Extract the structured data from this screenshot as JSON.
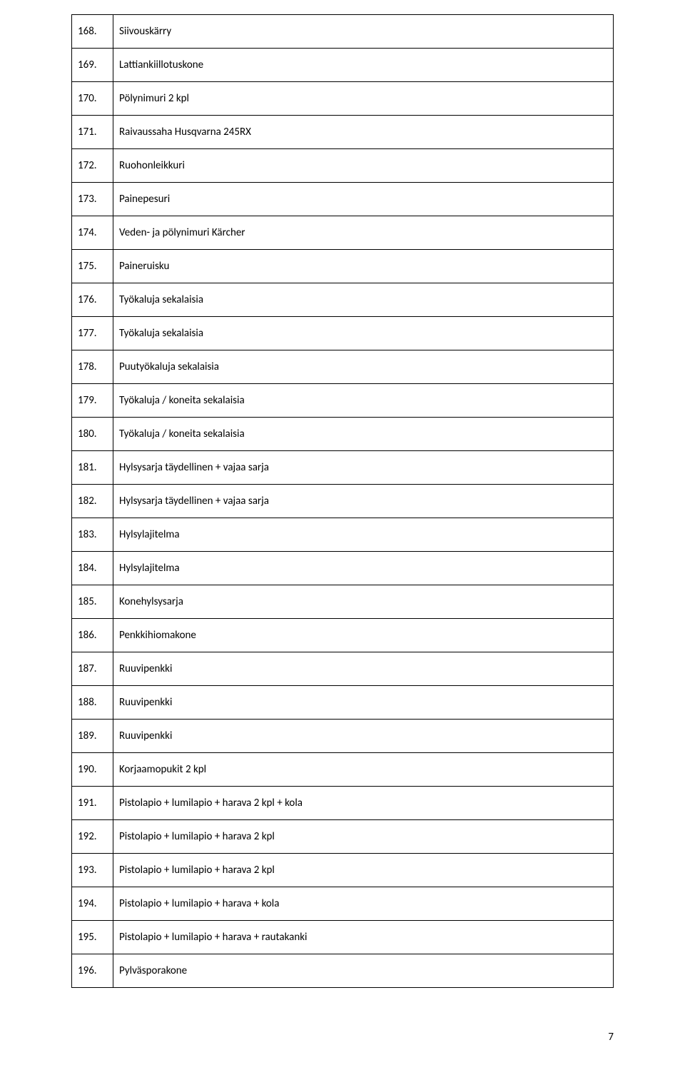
{
  "page_number": "7",
  "rows": [
    {
      "num": "168.",
      "desc": "Siivouskärry"
    },
    {
      "num": "169.",
      "desc": "Lattiankiillotuskone"
    },
    {
      "num": "170.",
      "desc": "Pölynimuri 2 kpl"
    },
    {
      "num": "171.",
      "desc": "Raivaussaha Husqvarna 245RX"
    },
    {
      "num": "172.",
      "desc": "Ruohonleikkuri"
    },
    {
      "num": "173.",
      "desc": "Painepesuri"
    },
    {
      "num": "174.",
      "desc": "Veden- ja pölynimuri Kärcher"
    },
    {
      "num": "175.",
      "desc": "Paineruisku"
    },
    {
      "num": "176.",
      "desc": "Työkaluja sekalaisia"
    },
    {
      "num": "177.",
      "desc": "Työkaluja sekalaisia"
    },
    {
      "num": "178.",
      "desc": "Puutyökaluja sekalaisia"
    },
    {
      "num": "179.",
      "desc": "Työkaluja / koneita sekalaisia"
    },
    {
      "num": "180.",
      "desc": "Työkaluja / koneita sekalaisia"
    },
    {
      "num": "181.",
      "desc": "Hylsysarja täydellinen + vajaa sarja"
    },
    {
      "num": "182.",
      "desc": "Hylsysarja täydellinen + vajaa sarja"
    },
    {
      "num": "183.",
      "desc": "Hylsylajitelma"
    },
    {
      "num": "184.",
      "desc": "Hylsylajitelma"
    },
    {
      "num": "185.",
      "desc": "Konehylsysarja"
    },
    {
      "num": "186.",
      "desc": "Penkkihiomakone"
    },
    {
      "num": "187.",
      "desc": "Ruuvipenkki"
    },
    {
      "num": "188.",
      "desc": "Ruuvipenkki"
    },
    {
      "num": "189.",
      "desc": "Ruuvipenkki"
    },
    {
      "num": "190.",
      "desc": "Korjaamopukit 2 kpl"
    },
    {
      "num": "191.",
      "desc": "Pistolapio + lumilapio + harava 2 kpl + kola"
    },
    {
      "num": "192.",
      "desc": "Pistolapio + lumilapio + harava 2 kpl"
    },
    {
      "num": "193.",
      "desc": "Pistolapio + lumilapio + harava 2 kpl"
    },
    {
      "num": "194.",
      "desc": "Pistolapio + lumilapio + harava + kola"
    },
    {
      "num": "195.",
      "desc": "Pistolapio + lumilapio + harava + rautakanki"
    },
    {
      "num": "196.",
      "desc": "Pylväsporakone"
    }
  ]
}
